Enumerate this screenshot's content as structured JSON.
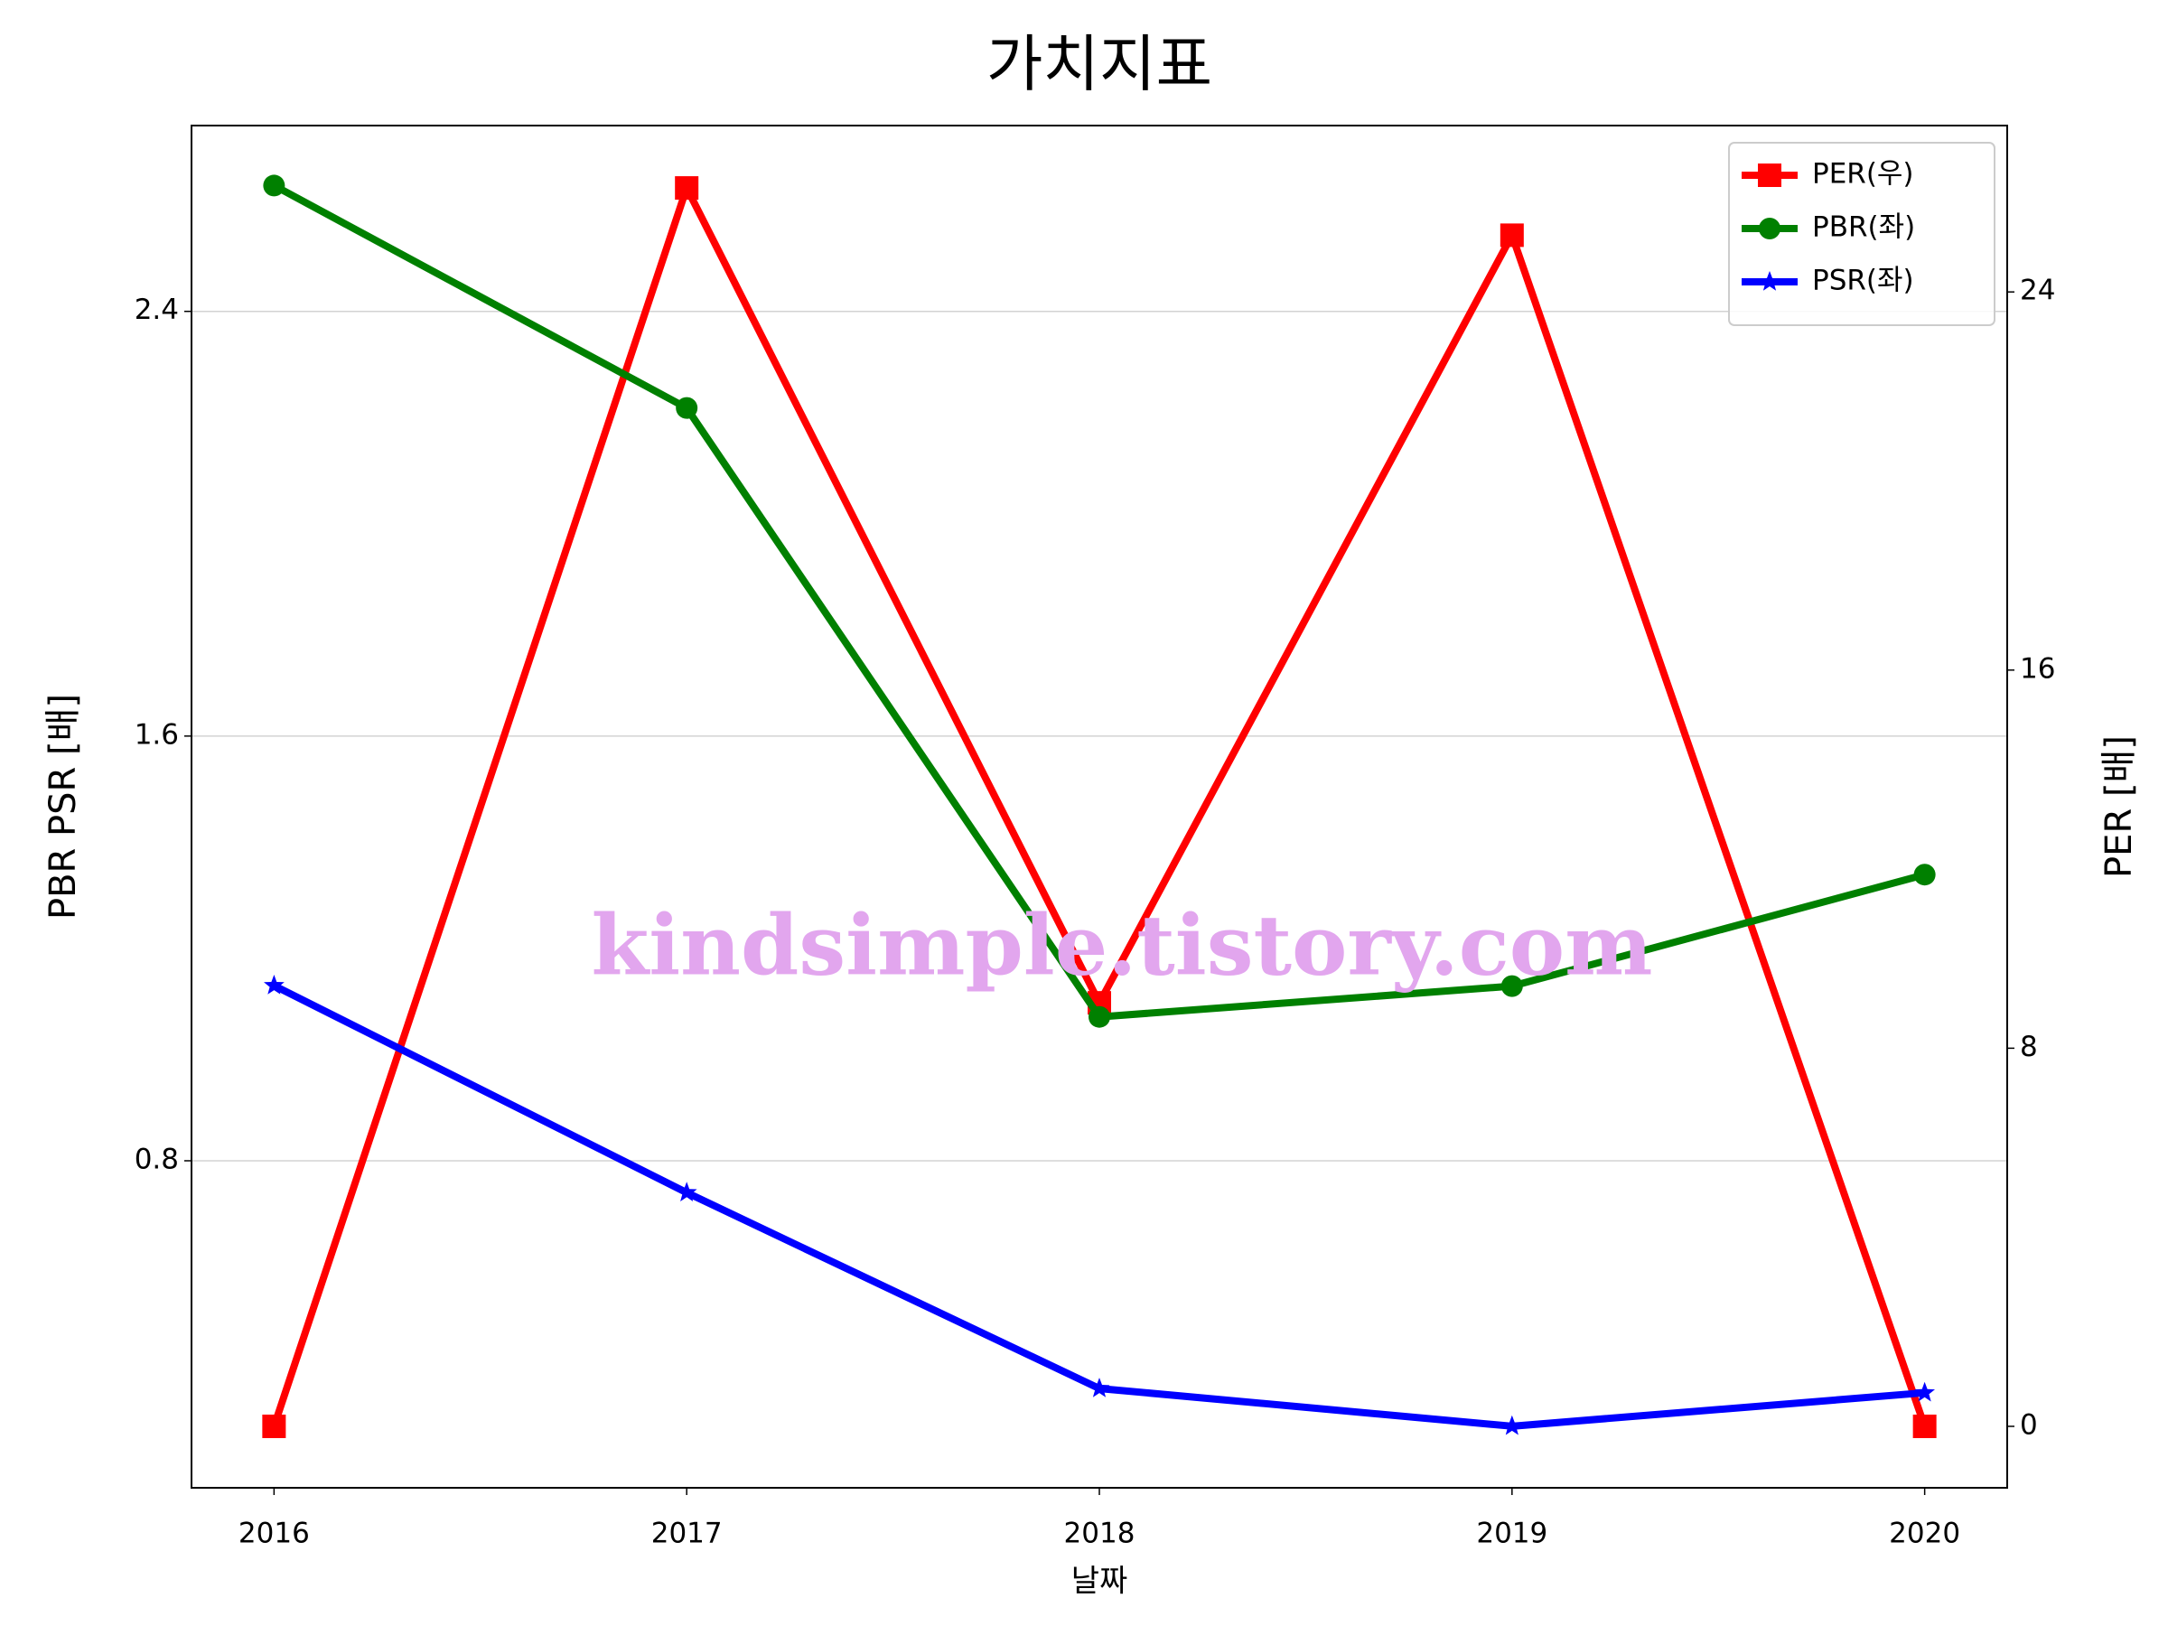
{
  "chart_data": {
    "type": "line",
    "title": "가치지표",
    "xlabel": "날짜",
    "ylabel": "PBR PSR [배]",
    "y2label": "PER [배]",
    "watermark": "kindsimple.tistory.com",
    "x": [
      2016,
      2017,
      2018,
      2019,
      2020
    ],
    "xlim": [
      2015.8,
      2020.2
    ],
    "xticks": [
      2016,
      2017,
      2018,
      2019,
      2020
    ],
    "ylim": [
      0.184,
      2.75
    ],
    "yticks": [
      0.8,
      1.6,
      2.4
    ],
    "y2lim": [
      -1.3,
      27.52
    ],
    "y2ticks": [
      0,
      8,
      16,
      24
    ],
    "grid": true,
    "legend": "upper right",
    "ylabel_color": "#008000",
    "y2label_color": "#ff0000",
    "series": [
      {
        "name": "PER(우)",
        "color": "#ff0000",
        "marker": "square",
        "axis": "y2",
        "values": [
          0,
          26.2,
          8.96,
          25.2,
          0
        ]
      },
      {
        "name": "PBR(좌)",
        "color": "#008000",
        "marker": "circle",
        "values": [
          2.637,
          2.218,
          1.071,
          1.129,
          1.339
        ]
      },
      {
        "name": "PSR(좌)",
        "color": "#0000ff",
        "marker": "star",
        "values": [
          1.13,
          0.74,
          0.371,
          0.3,
          0.363
        ]
      }
    ]
  }
}
